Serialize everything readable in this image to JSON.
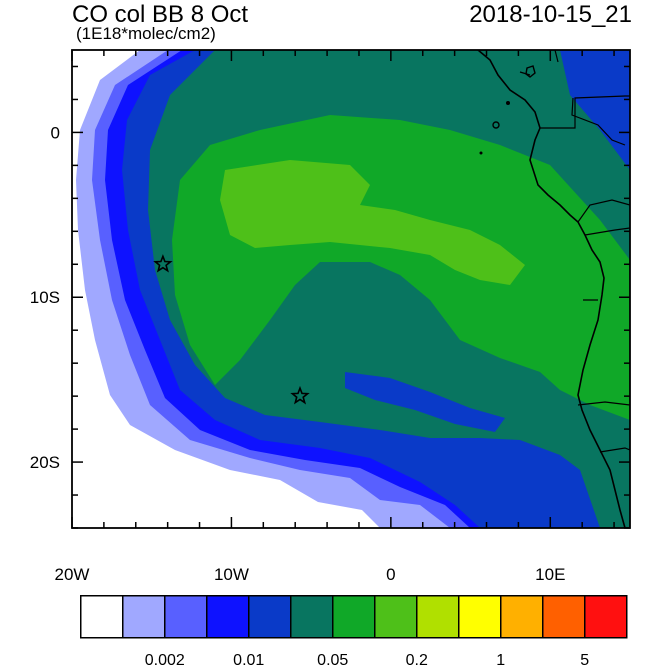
{
  "header": {
    "title": "CO col BB 8 Oct",
    "subtitle": "(1E18*molec/cm2)",
    "timestamp": "2018-10-15_21"
  },
  "map": {
    "lon_range": [
      -20,
      15
    ],
    "lat_range": [
      -24,
      5
    ],
    "x_ticks": [
      {
        "value": -20,
        "label": "20W"
      },
      {
        "value": -10,
        "label": "10W"
      },
      {
        "value": 0,
        "label": "0"
      },
      {
        "value": 10,
        "label": "10E"
      }
    ],
    "y_ticks": [
      {
        "value": 0,
        "label": "0"
      },
      {
        "value": -10,
        "label": "10S"
      },
      {
        "value": -20,
        "label": "20S"
      }
    ],
    "markers": [
      {
        "name": "star-marker-1",
        "lon": -14.3,
        "lat": -8.0
      },
      {
        "name": "star-marker-2",
        "lon": -5.7,
        "lat": -16.0
      }
    ],
    "colors": {
      "white": "#ffffff",
      "pale_blue": "#a0a8ff",
      "light_blue": "#5860ff",
      "blue": "#0e12ff",
      "dark_blue": "#0a3ac8",
      "teal": "#087560",
      "green": "#10a828",
      "light_green": "#4ec019",
      "coast": "#000000"
    }
  },
  "colorbar": {
    "colors": [
      "#ffffff",
      "#a0a8ff",
      "#5860ff",
      "#0e12ff",
      "#0a3ac8",
      "#087560",
      "#10a828",
      "#4ec019",
      "#b0e000",
      "#ffff00",
      "#ffb000",
      "#ff6000",
      "#ff1010"
    ],
    "labels": [
      {
        "text": "0.002",
        "after_box": 2
      },
      {
        "text": "0.01",
        "after_box": 4
      },
      {
        "text": "0.05",
        "after_box": 6
      },
      {
        "text": "0.2",
        "after_box": 8
      },
      {
        "text": "1",
        "after_box": 10
      },
      {
        "text": "5",
        "after_box": 12
      }
    ]
  }
}
